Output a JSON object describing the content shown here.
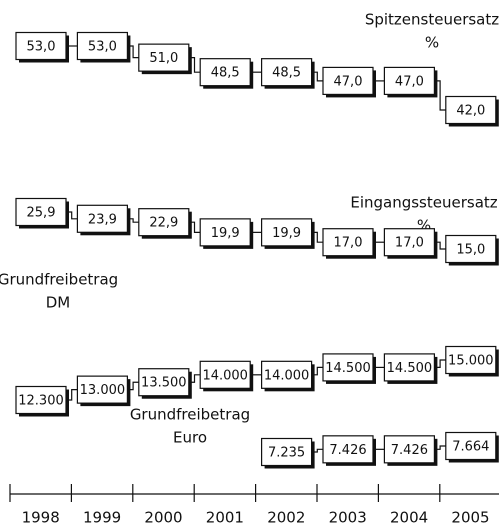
{
  "chart_data": {
    "type": "box-step",
    "categories": [
      "1998",
      "1999",
      "2000",
      "2001",
      "2002",
      "2003",
      "2004",
      "2005"
    ],
    "series": [
      {
        "name": "Spitzensteuersatz",
        "unit": "%",
        "values": [
          53.0,
          53.0,
          51.0,
          48.5,
          48.5,
          47.0,
          47.0,
          42.0
        ],
        "value_labels": [
          "53,0",
          "53,0",
          "51,0",
          "48,5",
          "48,5",
          "47,0",
          "47,0",
          "42,0"
        ]
      },
      {
        "name": "Eingangssteuersatz",
        "unit": "%",
        "values": [
          25.9,
          23.9,
          22.9,
          19.9,
          19.9,
          17.0,
          17.0,
          15.0
        ],
        "value_labels": [
          "25,9",
          "23,9",
          "22,9",
          "19,9",
          "19,9",
          "17,0",
          "17,0",
          "15,0"
        ]
      },
      {
        "name": "Grundfreibetrag",
        "unit": "DM",
        "values": [
          12300,
          13000,
          13500,
          14000,
          14000,
          14500,
          14500,
          15000
        ],
        "value_labels": [
          "12.300",
          "13.000",
          "13.500",
          "14.000",
          "14.000",
          "14.500",
          "14.500",
          "15.000"
        ]
      },
      {
        "name": "Grundfreibetrag",
        "unit": "Euro",
        "values": [
          null,
          null,
          null,
          null,
          7235,
          7426,
          7426,
          7664
        ],
        "value_labels": [
          null,
          null,
          null,
          null,
          "7.235",
          "7.426",
          "7.426",
          "7.664"
        ]
      }
    ]
  }
}
